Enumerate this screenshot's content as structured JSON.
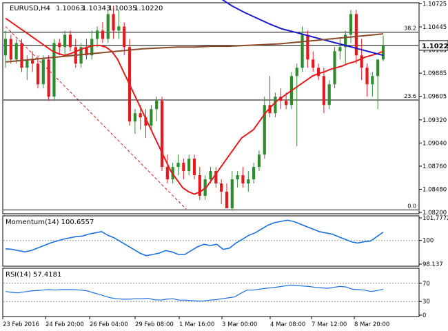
{
  "chart_data": [
    {
      "type": "candlestick",
      "symbol": "EURUSD,H4",
      "ohlc_readout": [
        "1.10063",
        "1.10343",
        "1.10035",
        "1.10220"
      ],
      "current_price": "1.10220",
      "x_labels": [
        "23 Feb 2016",
        "24 Feb 20:00",
        "26 Feb 04:00",
        "29 Feb 08:00",
        "1 Mar 16:00",
        "3 Mar 00:00",
        "4 Mar 08:00",
        "7 Mar 12:00",
        "8 Mar 20:00"
      ],
      "y_ticks": [
        "1.10725",
        "1.10445",
        "1.10165",
        "1.09885",
        "1.09605",
        "1.09320",
        "1.09040",
        "1.08760",
        "1.08480",
        "1.08200"
      ],
      "ylim": [
        1.082,
        1.1072
      ],
      "fib_levels": [
        {
          "label": "38.2",
          "value": 1.1038
        },
        {
          "label": "23.6",
          "value": 1.0956
        },
        {
          "label": "0.0",
          "value": 1.0823
        }
      ],
      "current_line": 1.1022,
      "candles": [
        [
          1.101,
          1.104,
          1.0995,
          1.103
        ],
        [
          1.103,
          1.1035,
          1.1,
          1.1005
        ],
        [
          1.1005,
          1.103,
          1.1,
          1.1025
        ],
        [
          1.1025,
          1.103,
          1.099,
          1.0995
        ],
        [
          1.0995,
          1.101,
          1.098,
          1.1005
        ],
        [
          1.1005,
          1.1015,
          1.099,
          1.1
        ],
        [
          1.1,
          1.101,
          1.097,
          1.0975
        ],
        [
          1.0975,
          1.101,
          1.097,
          1.1005
        ],
        [
          1.1005,
          1.101,
          1.0955,
          1.096
        ],
        [
          1.096,
          1.103,
          1.0955,
          1.1025
        ],
        [
          1.1025,
          1.103,
          1.101,
          1.102
        ],
        [
          1.102,
          1.104,
          1.101,
          1.1035
        ],
        [
          1.1035,
          1.104,
          1.1015,
          1.102
        ],
        [
          1.102,
          1.103,
          1.0995,
          1.1
        ],
        [
          1.1,
          1.1025,
          1.0995,
          1.102
        ],
        [
          1.102,
          1.103,
          1.1005,
          1.101
        ],
        [
          1.101,
          1.104,
          1.1005,
          1.103
        ],
        [
          1.103,
          1.1045,
          1.102,
          1.104
        ],
        [
          1.104,
          1.105,
          1.1025,
          1.103
        ],
        [
          1.103,
          1.1065,
          1.1025,
          1.106
        ],
        [
          1.106,
          1.107,
          1.103,
          1.104
        ],
        [
          1.104,
          1.1065,
          1.103,
          1.1045
        ],
        [
          1.1045,
          1.105,
          1.101,
          1.102
        ],
        [
          1.102,
          1.103,
          1.0925,
          1.093
        ],
        [
          1.093,
          1.0945,
          1.0915,
          1.094
        ],
        [
          1.094,
          1.095,
          1.092,
          1.0935
        ],
        [
          1.0935,
          1.0945,
          1.091,
          1.0925
        ],
        [
          1.0925,
          1.095,
          1.092,
          1.0945
        ],
        [
          1.0945,
          1.096,
          1.093,
          1.0955
        ],
        [
          1.0955,
          1.096,
          1.087,
          1.0875
        ],
        [
          1.0875,
          1.089,
          1.0855,
          1.086
        ],
        [
          1.086,
          1.088,
          1.0855,
          1.0875
        ],
        [
          1.0875,
          1.089,
          1.0865,
          1.088
        ],
        [
          1.088,
          1.0885,
          1.086,
          1.087
        ],
        [
          1.087,
          1.089,
          1.0865,
          1.0885
        ],
        [
          1.0885,
          1.089,
          1.086,
          1.0865
        ],
        [
          1.0865,
          1.0875,
          1.0835,
          1.084
        ],
        [
          1.084,
          1.0865,
          1.0835,
          1.086
        ],
        [
          1.086,
          1.0875,
          1.0855,
          1.087
        ],
        [
          1.087,
          1.0875,
          1.085,
          1.0855
        ],
        [
          1.0855,
          1.086,
          1.083,
          1.0845
        ],
        [
          1.0845,
          1.0855,
          1.0825,
          1.0825
        ],
        [
          1.0825,
          1.087,
          1.0822,
          1.086
        ],
        [
          1.086,
          1.087,
          1.085,
          1.0865
        ],
        [
          1.0865,
          1.0875,
          1.085,
          1.0855
        ],
        [
          1.0855,
          1.087,
          1.0845,
          1.086
        ],
        [
          1.086,
          1.088,
          1.0855,
          1.0875
        ],
        [
          1.0875,
          1.0895,
          1.087,
          1.089
        ],
        [
          1.089,
          1.096,
          1.0885,
          1.095
        ],
        [
          1.095,
          1.0985,
          1.0935,
          1.094
        ],
        [
          1.094,
          1.0965,
          1.0935,
          1.096
        ],
        [
          1.096,
          1.097,
          1.0945,
          1.0955
        ],
        [
          1.0955,
          1.0965,
          1.0945,
          1.095
        ],
        [
          1.095,
          1.099,
          1.0945,
          1.0985
        ],
        [
          1.0985,
          1.1,
          1.09,
          1.0995
        ],
        [
          1.0995,
          1.1045,
          1.099,
          1.1035
        ],
        [
          1.1035,
          1.104,
          1.0995,
          1.1005
        ],
        [
          1.1005,
          1.1015,
          1.099,
          1.0995
        ],
        [
          1.0995,
          1.1,
          1.098,
          1.0985
        ],
        [
          1.0985,
          1.0995,
          1.094,
          1.095
        ],
        [
          1.095,
          1.098,
          1.0945,
          1.0975
        ],
        [
          1.0975,
          1.102,
          1.097,
          1.1015
        ],
        [
          1.1015,
          1.103,
          1.1005,
          1.102
        ],
        [
          1.102,
          1.104,
          1.1,
          1.1035
        ],
        [
          1.1035,
          1.1065,
          1.1025,
          1.106
        ],
        [
          1.106,
          1.1065,
          1.1,
          1.101
        ],
        [
          1.101,
          1.103,
          1.098,
          1.0995
        ],
        [
          1.0995,
          1.1,
          1.096,
          1.0975
        ],
        [
          1.0975,
          1.099,
          1.096,
          1.0985
        ],
        [
          1.0985,
          1.1005,
          1.0945,
          1.1005
        ],
        [
          1.1005,
          1.1034,
          1.1003,
          1.1022
        ]
      ],
      "series": [
        {
          "name": "",
          "color": "#e41a1c",
          "values": [
            1.1055,
            1.105,
            1.1045,
            1.104,
            1.1035,
            1.103,
            1.1025,
            1.102,
            1.1015,
            1.1012,
            1.101,
            1.1012,
            1.1015,
            1.1018,
            1.102,
            1.1022,
            1.1022,
            1.102,
            1.1015,
            1.1005,
            1.099,
            1.0975,
            1.096,
            1.0945,
            1.093,
            1.0915,
            1.09,
            1.0885,
            1.087,
            1.086,
            1.085,
            1.0845,
            1.0842,
            1.0845,
            1.085,
            1.086,
            1.087,
            1.088,
            1.089,
            1.09,
            1.091,
            1.0915,
            1.092,
            1.093,
            1.094,
            1.0948,
            1.0955,
            1.096,
            1.0965,
            1.097,
            1.0975,
            1.098,
            1.0985,
            1.0988,
            1.099,
            1.0993,
            1.0995,
            1.0997,
            1.1,
            1.1002,
            1.1005,
            1.1008,
            1.101,
            1.1012,
            1.1015
          ]
        },
        {
          "name": "",
          "color": "#1a1acc",
          "values": [
            1.108,
            1.107,
            1.1062,
            1.1055,
            1.1048,
            1.1042,
            1.1038,
            1.1034,
            1.103,
            1.1026,
            1.1022,
            1.1018,
            1.1014,
            1.101
          ]
        },
        {
          "name": "",
          "color": "#8b4a2b",
          "values": [
            1.1002,
            1.1004,
            1.1006,
            1.1008,
            1.101,
            1.1012,
            1.1014,
            1.1016,
            1.1018,
            1.1019,
            1.102,
            1.102,
            1.1021,
            1.1021,
            1.1022,
            1.1023,
            1.1024,
            1.1026,
            1.1028,
            1.103,
            1.1032,
            1.1034,
            1.1036
          ]
        }
      ],
      "diagonal_line": "dashed red downtrend line"
    },
    {
      "type": "line",
      "title": "Momentum(14) 100.6557",
      "y_ticks": [
        "101.7772",
        "100",
        "98.137"
      ],
      "ylim": [
        98.137,
        101.7772
      ],
      "reference": 100,
      "color": "#1a6fdb",
      "values": [
        99.35,
        99.3,
        99.2,
        99.1,
        99.2,
        99.4,
        99.6,
        99.8,
        99.95,
        100.1,
        100.2,
        100.3,
        100.35,
        100.5,
        100.6,
        100.7,
        100.4,
        100.2,
        99.9,
        99.6,
        99.3,
        99.0,
        98.8,
        98.9,
        99.0,
        99.2,
        99.1,
        98.9,
        98.9,
        99.2,
        99.5,
        99.7,
        99.6,
        99.7,
        99.3,
        99.4,
        99.8,
        100.1,
        100.4,
        100.6,
        100.9,
        101.2,
        101.4,
        101.5,
        101.6,
        101.5,
        101.3,
        101.1,
        100.9,
        100.7,
        100.6,
        100.5,
        100.3,
        100.1,
        99.9,
        99.8,
        99.9,
        99.95,
        100.3,
        100.66
      ]
    },
    {
      "type": "line",
      "title": "RSI(14) 57.4181",
      "y_ticks": [
        "70",
        "30",
        "0"
      ],
      "ylim": [
        0,
        100
      ],
      "levels": [
        70,
        30
      ],
      "color": "#1a6fdb",
      "values": [
        52,
        50,
        49,
        51,
        53,
        54,
        55,
        56,
        55,
        56,
        56,
        56,
        55,
        54,
        50,
        46,
        42,
        38,
        36,
        35,
        35,
        36,
        36,
        37,
        34,
        33,
        35,
        36,
        33,
        33,
        32,
        31,
        31,
        33,
        34,
        36,
        38,
        40,
        48,
        55,
        55,
        57,
        59,
        60,
        62,
        64,
        66,
        65,
        64,
        63,
        61,
        60,
        59,
        61,
        63,
        62,
        57,
        56,
        55,
        52,
        54,
        57
      ]
    }
  ]
}
